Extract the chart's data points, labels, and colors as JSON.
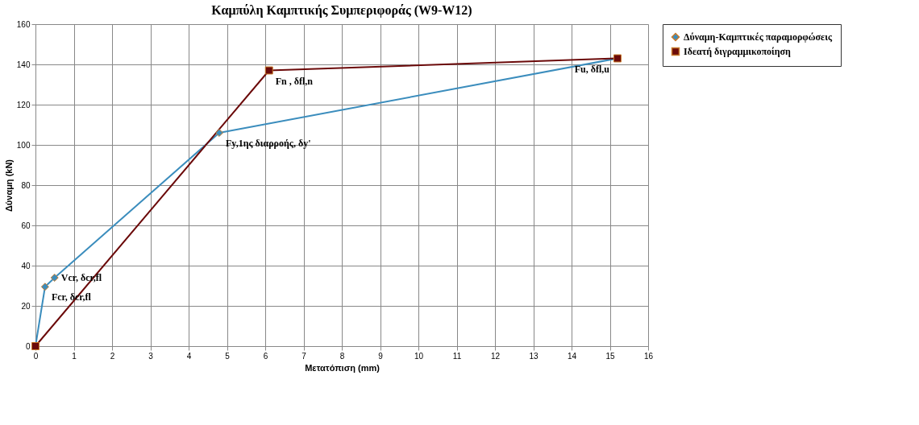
{
  "chart_data": {
    "type": "line",
    "title": "Καμπύλη Καμπτικής Συμπεριφοράς (W9-W12)",
    "xlabel": "Μετατόπιση (mm)",
    "ylabel": "Δύναμη (kN)",
    "xlim": [
      0,
      16
    ],
    "xticks": [
      0,
      1,
      2,
      3,
      4,
      5,
      6,
      7,
      8,
      9,
      10,
      11,
      12,
      13,
      14,
      15,
      16
    ],
    "ylim": [
      0,
      160
    ],
    "yticks": [
      0,
      20,
      40,
      60,
      80,
      100,
      120,
      140,
      160
    ],
    "grid": true,
    "legend": "right",
    "line_style": "solid",
    "series": [
      {
        "name": "Δύναμη-Καμπτικές παραμορφώσεις",
        "color": "#3b8dbd",
        "marker": "diamond",
        "x": [
          0,
          0.25,
          0.5,
          4.8,
          15.2
        ],
        "values": [
          0,
          29.5,
          34,
          106,
          143
        ]
      },
      {
        "name": "Ιδεατή διγραμμικοποίηση",
        "color": "#6b0a0a",
        "marker": "square",
        "x": [
          0,
          6.1,
          15.2
        ],
        "values": [
          0,
          137,
          143
        ]
      }
    ],
    "annotations": [
      {
        "text": "Fcr,  δcr,fl",
        "x": 0.25,
        "y": 29.5
      },
      {
        "text": "Vcr,  δcr,fl",
        "x": 0.5,
        "y": 34
      },
      {
        "text": "Fy,1ης διαρροής,  δy'",
        "x": 4.8,
        "y": 106
      },
      {
        "text": "Fn , δfl,n",
        "x": 6.1,
        "y": 137
      },
      {
        "text": "Fu,  δfl,u",
        "x": 15.2,
        "y": 143
      }
    ]
  }
}
